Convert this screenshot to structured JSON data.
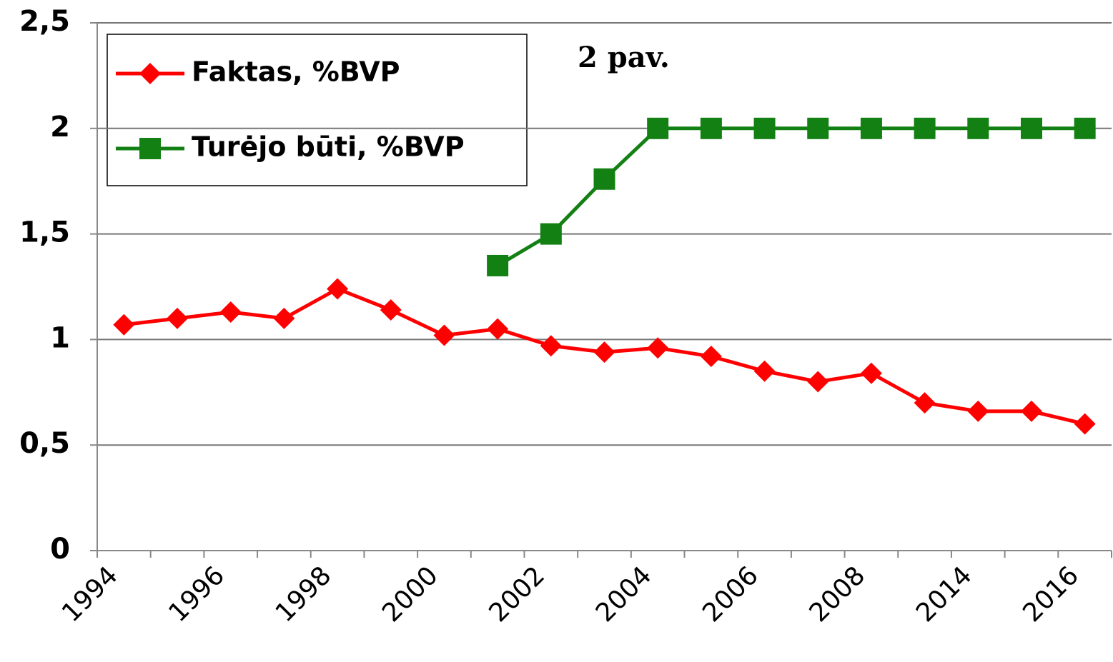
{
  "chart_data": {
    "type": "line",
    "annotation": "2 pav.",
    "categories": [
      "1994",
      null,
      "1996",
      null,
      "1998",
      null,
      "2000",
      null,
      "2002",
      null,
      "2004",
      null,
      "2006",
      null,
      "2008",
      null,
      "2014",
      null,
      "2016"
    ],
    "series": [
      {
        "name": "Faktas, %BVP",
        "color": "#ff0000",
        "marker": "diamond",
        "values": [
          1.07,
          1.1,
          1.13,
          1.1,
          1.24,
          1.14,
          1.02,
          1.05,
          0.97,
          0.94,
          0.96,
          0.92,
          0.85,
          0.8,
          0.84,
          0.7,
          0.66,
          0.66,
          0.6
        ]
      },
      {
        "name": "Turėjo būti, %BVP",
        "color": "#138013",
        "marker": "square",
        "values": [
          null,
          null,
          null,
          null,
          null,
          null,
          null,
          1.35,
          1.5,
          1.76,
          2,
          2,
          2,
          2,
          2,
          2,
          2,
          2,
          2
        ]
      }
    ],
    "ylim": [
      0,
      2.5
    ],
    "yticks": [
      0,
      {
        "value": 0.5,
        "label": "0,5"
      },
      1,
      {
        "value": 1.5,
        "label": "1,5"
      },
      2,
      {
        "value": 2.5,
        "label": "2,5"
      }
    ],
    "grid": true,
    "legend": "top-left"
  }
}
